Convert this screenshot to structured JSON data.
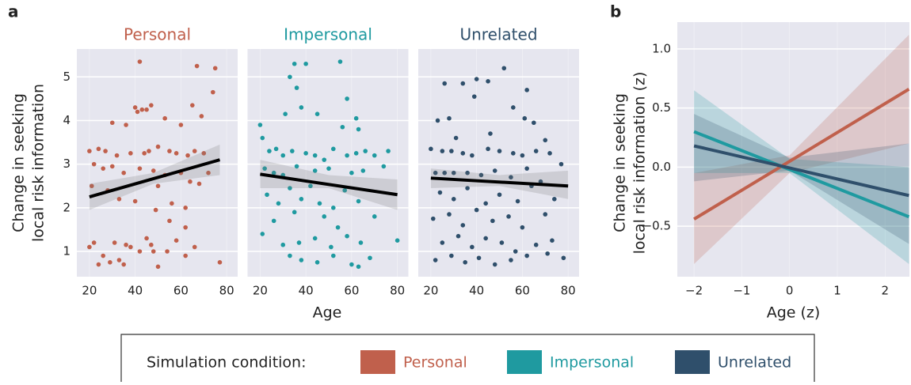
{
  "chart_data": [
    {
      "type": "scatter",
      "panel_label": "a",
      "ylabel": [
        "Change in seeking",
        "local risk information"
      ],
      "xlabel": "Age",
      "xlim": [
        14.5,
        84.8
      ],
      "ylim": [
        0.42,
        5.64
      ],
      "xticks": [
        20,
        40,
        60,
        80
      ],
      "yticks": [
        1,
        2,
        3,
        4,
        5
      ],
      "grid": true,
      "facets": [
        {
          "title": "Personal",
          "color": "#c0604c",
          "x": [
            42,
            67,
            75,
            74,
            40,
            43,
            45,
            41,
            47,
            53,
            65,
            69,
            30,
            36,
            60,
            20,
            24,
            27,
            32,
            38,
            44,
            46,
            50,
            55,
            58,
            63,
            66,
            70,
            22,
            26,
            30,
            35,
            42,
            48,
            53,
            60,
            64,
            72,
            21,
            28,
            33,
            40,
            50,
            56,
            62,
            68,
            49,
            55,
            62,
            20,
            22,
            26,
            29,
            31,
            33,
            35,
            38,
            45,
            48,
            50,
            54,
            58,
            62,
            66,
            77,
            24,
            36,
            42,
            47
          ],
          "y": [
            5.35,
            5.25,
            5.2,
            4.65,
            4.3,
            4.25,
            4.25,
            4.2,
            4.35,
            4.05,
            4.35,
            4.1,
            3.95,
            3.9,
            3.9,
            3.3,
            3.35,
            3.3,
            3.2,
            3.25,
            3.25,
            3.3,
            3.4,
            3.3,
            3.25,
            3.2,
            3.3,
            3.25,
            3.0,
            2.9,
            2.95,
            2.8,
            2.9,
            2.85,
            2.75,
            2.8,
            2.6,
            2.8,
            2.5,
            2.4,
            2.2,
            2.15,
            2.5,
            2.1,
            2.0,
            2.55,
            1.95,
            1.7,
            1.55,
            1.1,
            1.2,
            0.9,
            0.75,
            1.2,
            0.8,
            0.7,
            1.1,
            1.3,
            1.0,
            0.65,
            1.0,
            1.25,
            0.9,
            1.1,
            0.75,
            0.7,
            1.15,
            1.0,
            1.15
          ],
          "fit": {
            "x": [
              20,
              77
            ],
            "y": [
              2.25,
              3.1
            ]
          },
          "band": {
            "x": [
              20,
              48,
              77
            ],
            "lower": [
              1.95,
              2.55,
              2.75
            ],
            "upper": [
              2.55,
              2.8,
              3.45
            ]
          }
        },
        {
          "title": "Impersonal",
          "color": "#1f9aa0",
          "x": [
            35,
            40,
            55,
            33,
            36,
            58,
            38,
            45,
            62,
            31,
            56,
            63,
            66,
            20,
            21,
            24,
            27,
            30,
            34,
            40,
            44,
            48,
            52,
            58,
            62,
            70,
            76,
            22,
            26,
            30,
            36,
            44,
            50,
            60,
            65,
            74,
            23,
            28,
            33,
            38,
            42,
            46,
            52,
            57,
            63,
            70,
            26,
            35,
            48,
            54,
            21,
            30,
            37,
            44,
            51,
            58,
            64,
            80,
            33,
            38,
            45,
            52,
            60,
            63,
            68
          ],
          "y": [
            5.3,
            5.3,
            5.35,
            5.0,
            4.75,
            4.5,
            4.3,
            4.15,
            4.05,
            4.15,
            3.85,
            3.8,
            3.3,
            3.9,
            3.6,
            3.3,
            3.35,
            3.2,
            3.3,
            3.25,
            3.2,
            3.1,
            3.35,
            3.2,
            3.25,
            3.2,
            3.3,
            2.9,
            2.8,
            2.75,
            2.95,
            2.85,
            2.9,
            2.8,
            2.85,
            2.95,
            2.3,
            2.1,
            2.45,
            2.2,
            2.5,
            2.1,
            2.0,
            2.4,
            2.15,
            1.8,
            1.7,
            1.9,
            1.8,
            1.55,
            1.4,
            1.15,
            1.2,
            1.3,
            1.1,
            1.35,
            1.2,
            1.25,
            0.9,
            0.8,
            0.75,
            0.9,
            0.7,
            0.65,
            0.85
          ],
          "fit": {
            "x": [
              20,
              80
            ],
            "y": [
              2.77,
              2.3
            ]
          },
          "band": {
            "x": [
              20,
              50,
              80
            ],
            "lower": [
              2.45,
              2.45,
              1.95
            ],
            "upper": [
              3.1,
              2.75,
              2.65
            ]
          }
        },
        {
          "title": "Unrelated",
          "color": "#2f4f6b",
          "x": [
            52,
            40,
            45,
            26,
            34,
            62,
            39,
            56,
            23,
            28,
            61,
            65,
            31,
            46,
            70,
            20,
            25,
            29,
            34,
            38,
            45,
            50,
            56,
            60,
            66,
            72,
            77,
            22,
            26,
            30,
            36,
            42,
            48,
            55,
            62,
            68,
            24,
            30,
            36,
            44,
            50,
            58,
            64,
            74,
            21,
            28,
            34,
            40,
            47,
            54,
            60,
            70,
            25,
            32,
            38,
            44,
            51,
            57,
            66,
            73,
            22,
            29,
            35,
            41,
            48,
            55,
            62,
            71,
            78
          ],
          "y": [
            5.2,
            4.95,
            4.9,
            4.85,
            4.85,
            4.7,
            4.55,
            4.3,
            4.0,
            4.05,
            4.05,
            3.95,
            3.6,
            3.7,
            3.55,
            3.35,
            3.3,
            3.3,
            3.25,
            3.2,
            3.35,
            3.3,
            3.25,
            3.2,
            3.3,
            3.25,
            3.0,
            2.8,
            2.8,
            2.8,
            2.8,
            2.75,
            2.85,
            2.7,
            2.9,
            2.6,
            2.35,
            2.2,
            2.45,
            2.1,
            2.3,
            2.15,
            2.5,
            2.2,
            1.75,
            1.85,
            1.6,
            1.95,
            1.7,
            1.8,
            1.55,
            1.85,
            1.2,
            1.35,
            1.1,
            1.3,
            1.2,
            1.0,
            1.15,
            1.25,
            0.8,
            0.9,
            0.75,
            0.85,
            0.7,
            0.8,
            0.9,
            0.95,
            0.85
          ],
          "fit": {
            "x": [
              20,
              80
            ],
            "y": [
              2.68,
              2.5
            ]
          },
          "band": {
            "x": [
              20,
              50,
              80
            ],
            "lower": [
              2.45,
              2.5,
              2.2
            ],
            "upper": [
              2.9,
              2.75,
              2.85
            ]
          }
        }
      ]
    },
    {
      "type": "line",
      "panel_label": "b",
      "ylabel": [
        "Change in seeking",
        "local risk information (z)"
      ],
      "xlabel": "Age (z)",
      "xlim": [
        -2.35,
        2.51
      ],
      "ylim": [
        -0.927,
        1.227
      ],
      "xticks": [
        {
          "value": -2,
          "label": "−2"
        },
        {
          "value": -1,
          "label": "−1"
        },
        0,
        1,
        2
      ],
      "yticks": [
        {
          "value": -0.5,
          "label": "−0.5"
        },
        {
          "value": 0,
          "label": "0.0"
        },
        0.5,
        {
          "value": 1,
          "label": "1.0"
        }
      ],
      "grid": true,
      "legend_title": "Simulation condition:",
      "legend_position": "bottom",
      "series": [
        {
          "name": "Personal",
          "color": "#c0604c",
          "x": [
            -2,
            2.5
          ],
          "values": [
            -0.44,
            0.66
          ],
          "band": {
            "x": [
              -2,
              0,
              2.5
            ],
            "lower": [
              -0.82,
              -0.05,
              0.2
            ],
            "upper": [
              -0.05,
              0.1,
              1.12
            ]
          }
        },
        {
          "name": "Impersonal",
          "color": "#1f9aa0",
          "x": [
            -2,
            2.5
          ],
          "values": [
            0.3,
            -0.42
          ],
          "band": {
            "x": [
              -2,
              0,
              2.5
            ],
            "lower": [
              -0.05,
              -0.05,
              -0.82
            ],
            "upper": [
              0.65,
              0.07,
              0
            ]
          }
        },
        {
          "name": "Unrelated",
          "color": "#2f4f6b",
          "x": [
            -2,
            2.5
          ],
          "values": [
            0.18,
            -0.24
          ],
          "band": {
            "x": [
              -2,
              0,
              2.5
            ],
            "lower": [
              -0.12,
              -0.03,
              -0.65
            ],
            "upper": [
              0.45,
              0.08,
              0.2
            ]
          }
        }
      ]
    }
  ]
}
